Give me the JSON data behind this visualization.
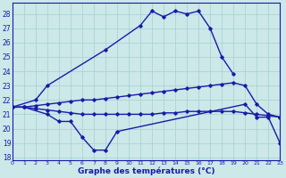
{
  "title": "Graphe des températures (°C)",
  "bg": "#cce8e8",
  "grid_color": "#aad4d4",
  "lc": "#1a1aaa",
  "ylim": [
    17.8,
    28.8
  ],
  "xlim": [
    0,
    23
  ],
  "ytick_vals": [
    18,
    19,
    20,
    21,
    22,
    23,
    24,
    25,
    26,
    27,
    28
  ],
  "xtick_vals": [
    0,
    1,
    2,
    3,
    4,
    5,
    6,
    7,
    8,
    9,
    10,
    11,
    12,
    13,
    14,
    15,
    16,
    17,
    18,
    19,
    20,
    21,
    22,
    23
  ],
  "curve_top_x": [
    0,
    2,
    3,
    8,
    11,
    12,
    13,
    14,
    15,
    16,
    17,
    18,
    19
  ],
  "curve_top_y": [
    21.5,
    22.0,
    23.0,
    25.5,
    27.2,
    28.2,
    27.8,
    28.2,
    28.0,
    28.2,
    27.0,
    25.0,
    23.8
  ],
  "curve_upper_mid_x": [
    0,
    1,
    2,
    3,
    4,
    5,
    6,
    7,
    8,
    9,
    10,
    11,
    12,
    13,
    14,
    15,
    16,
    17,
    18,
    19,
    20,
    21,
    22,
    23
  ],
  "curve_upper_mid_y": [
    21.5,
    21.5,
    21.6,
    21.7,
    21.8,
    21.9,
    22.0,
    22.0,
    22.1,
    22.2,
    22.3,
    22.4,
    22.5,
    22.6,
    22.7,
    22.8,
    22.9,
    23.0,
    23.1,
    23.2,
    23.0,
    21.7,
    21.0,
    20.8
  ],
  "curve_lower_mid_x": [
    0,
    1,
    2,
    3,
    4,
    5,
    6,
    7,
    8,
    9,
    10,
    11,
    12,
    13,
    14,
    15,
    16,
    17,
    18,
    19,
    20,
    21,
    22,
    23
  ],
  "curve_lower_mid_y": [
    21.5,
    21.5,
    21.4,
    21.3,
    21.2,
    21.1,
    21.0,
    21.0,
    21.0,
    21.0,
    21.0,
    21.0,
    21.0,
    21.1,
    21.1,
    21.2,
    21.2,
    21.2,
    21.2,
    21.2,
    21.1,
    21.0,
    20.9,
    20.8
  ],
  "curve_bot_x": [
    0,
    1,
    3,
    4,
    5,
    6,
    7,
    8,
    9,
    20,
    21,
    22,
    23
  ],
  "curve_bot_y": [
    21.5,
    21.5,
    21.0,
    20.5,
    20.5,
    19.4,
    18.5,
    18.5,
    19.8,
    21.7,
    20.8,
    20.8,
    19.0
  ]
}
